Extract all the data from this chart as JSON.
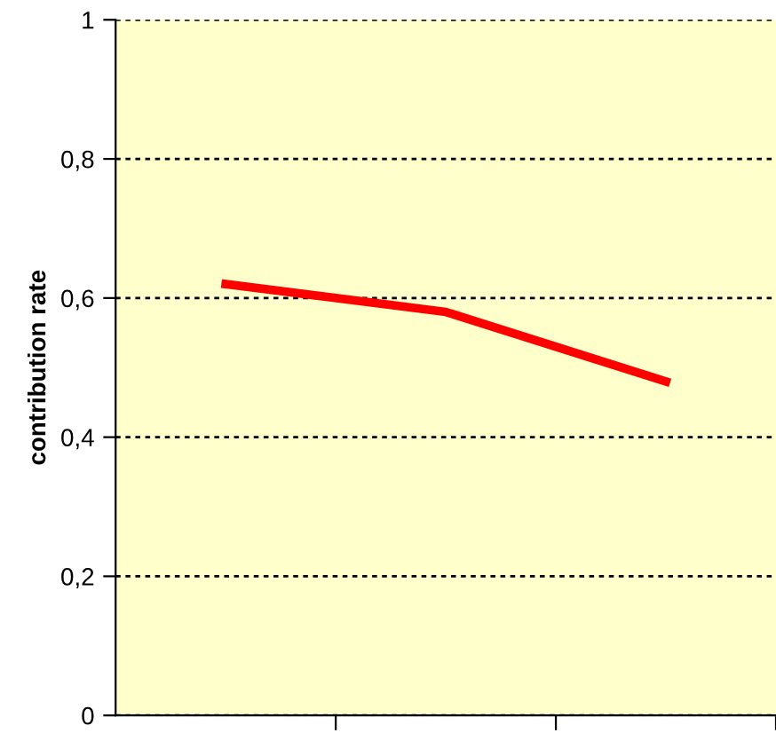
{
  "chart_data": {
    "type": "line",
    "ylabel": "contribution rate",
    "categories": [
      null,
      null,
      null
    ],
    "series": [
      {
        "color": "#ff0000",
        "values": [
          0.62,
          0.58,
          0.48
        ]
      }
    ],
    "ylim": [
      0,
      1
    ],
    "yticks": [
      0,
      {
        "value": 0.2,
        "label": "0,2"
      },
      {
        "value": 0.4,
        "label": "0,4"
      },
      {
        "value": 0.6,
        "label": "0,6"
      },
      {
        "value": 0.8,
        "label": "0,8"
      },
      1
    ],
    "grid": "y",
    "line_style": "solid",
    "marker": "none"
  }
}
